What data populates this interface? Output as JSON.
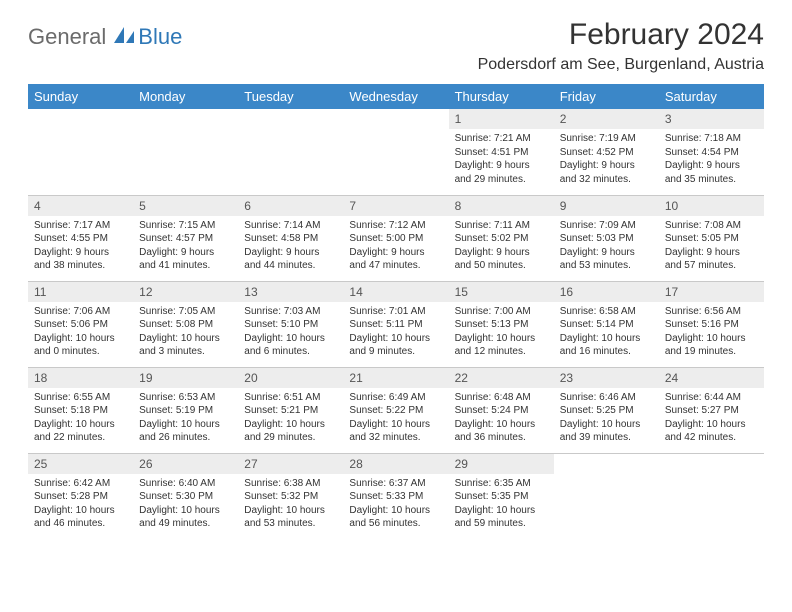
{
  "logo": {
    "part1": "General",
    "part2": "Blue"
  },
  "title": "February 2024",
  "location": "Podersdorf am See, Burgenland, Austria",
  "colors": {
    "header_bg": "#3b87c8",
    "header_fg": "#ffffff",
    "daybar_bg": "#ededed",
    "border": "#c9c9c9",
    "logo_gray": "#6b6b6b",
    "logo_blue": "#2f78b7"
  },
  "weekdays": [
    "Sunday",
    "Monday",
    "Tuesday",
    "Wednesday",
    "Thursday",
    "Friday",
    "Saturday"
  ],
  "startOffset": 4,
  "days": [
    {
      "n": "1",
      "sunrise": "Sunrise: 7:21 AM",
      "sunset": "Sunset: 4:51 PM",
      "day1": "Daylight: 9 hours",
      "day2": "and 29 minutes."
    },
    {
      "n": "2",
      "sunrise": "Sunrise: 7:19 AM",
      "sunset": "Sunset: 4:52 PM",
      "day1": "Daylight: 9 hours",
      "day2": "and 32 minutes."
    },
    {
      "n": "3",
      "sunrise": "Sunrise: 7:18 AM",
      "sunset": "Sunset: 4:54 PM",
      "day1": "Daylight: 9 hours",
      "day2": "and 35 minutes."
    },
    {
      "n": "4",
      "sunrise": "Sunrise: 7:17 AM",
      "sunset": "Sunset: 4:55 PM",
      "day1": "Daylight: 9 hours",
      "day2": "and 38 minutes."
    },
    {
      "n": "5",
      "sunrise": "Sunrise: 7:15 AM",
      "sunset": "Sunset: 4:57 PM",
      "day1": "Daylight: 9 hours",
      "day2": "and 41 minutes."
    },
    {
      "n": "6",
      "sunrise": "Sunrise: 7:14 AM",
      "sunset": "Sunset: 4:58 PM",
      "day1": "Daylight: 9 hours",
      "day2": "and 44 minutes."
    },
    {
      "n": "7",
      "sunrise": "Sunrise: 7:12 AM",
      "sunset": "Sunset: 5:00 PM",
      "day1": "Daylight: 9 hours",
      "day2": "and 47 minutes."
    },
    {
      "n": "8",
      "sunrise": "Sunrise: 7:11 AM",
      "sunset": "Sunset: 5:02 PM",
      "day1": "Daylight: 9 hours",
      "day2": "and 50 minutes."
    },
    {
      "n": "9",
      "sunrise": "Sunrise: 7:09 AM",
      "sunset": "Sunset: 5:03 PM",
      "day1": "Daylight: 9 hours",
      "day2": "and 53 minutes."
    },
    {
      "n": "10",
      "sunrise": "Sunrise: 7:08 AM",
      "sunset": "Sunset: 5:05 PM",
      "day1": "Daylight: 9 hours",
      "day2": "and 57 minutes."
    },
    {
      "n": "11",
      "sunrise": "Sunrise: 7:06 AM",
      "sunset": "Sunset: 5:06 PM",
      "day1": "Daylight: 10 hours",
      "day2": "and 0 minutes."
    },
    {
      "n": "12",
      "sunrise": "Sunrise: 7:05 AM",
      "sunset": "Sunset: 5:08 PM",
      "day1": "Daylight: 10 hours",
      "day2": "and 3 minutes."
    },
    {
      "n": "13",
      "sunrise": "Sunrise: 7:03 AM",
      "sunset": "Sunset: 5:10 PM",
      "day1": "Daylight: 10 hours",
      "day2": "and 6 minutes."
    },
    {
      "n": "14",
      "sunrise": "Sunrise: 7:01 AM",
      "sunset": "Sunset: 5:11 PM",
      "day1": "Daylight: 10 hours",
      "day2": "and 9 minutes."
    },
    {
      "n": "15",
      "sunrise": "Sunrise: 7:00 AM",
      "sunset": "Sunset: 5:13 PM",
      "day1": "Daylight: 10 hours",
      "day2": "and 12 minutes."
    },
    {
      "n": "16",
      "sunrise": "Sunrise: 6:58 AM",
      "sunset": "Sunset: 5:14 PM",
      "day1": "Daylight: 10 hours",
      "day2": "and 16 minutes."
    },
    {
      "n": "17",
      "sunrise": "Sunrise: 6:56 AM",
      "sunset": "Sunset: 5:16 PM",
      "day1": "Daylight: 10 hours",
      "day2": "and 19 minutes."
    },
    {
      "n": "18",
      "sunrise": "Sunrise: 6:55 AM",
      "sunset": "Sunset: 5:18 PM",
      "day1": "Daylight: 10 hours",
      "day2": "and 22 minutes."
    },
    {
      "n": "19",
      "sunrise": "Sunrise: 6:53 AM",
      "sunset": "Sunset: 5:19 PM",
      "day1": "Daylight: 10 hours",
      "day2": "and 26 minutes."
    },
    {
      "n": "20",
      "sunrise": "Sunrise: 6:51 AM",
      "sunset": "Sunset: 5:21 PM",
      "day1": "Daylight: 10 hours",
      "day2": "and 29 minutes."
    },
    {
      "n": "21",
      "sunrise": "Sunrise: 6:49 AM",
      "sunset": "Sunset: 5:22 PM",
      "day1": "Daylight: 10 hours",
      "day2": "and 32 minutes."
    },
    {
      "n": "22",
      "sunrise": "Sunrise: 6:48 AM",
      "sunset": "Sunset: 5:24 PM",
      "day1": "Daylight: 10 hours",
      "day2": "and 36 minutes."
    },
    {
      "n": "23",
      "sunrise": "Sunrise: 6:46 AM",
      "sunset": "Sunset: 5:25 PM",
      "day1": "Daylight: 10 hours",
      "day2": "and 39 minutes."
    },
    {
      "n": "24",
      "sunrise": "Sunrise: 6:44 AM",
      "sunset": "Sunset: 5:27 PM",
      "day1": "Daylight: 10 hours",
      "day2": "and 42 minutes."
    },
    {
      "n": "25",
      "sunrise": "Sunrise: 6:42 AM",
      "sunset": "Sunset: 5:28 PM",
      "day1": "Daylight: 10 hours",
      "day2": "and 46 minutes."
    },
    {
      "n": "26",
      "sunrise": "Sunrise: 6:40 AM",
      "sunset": "Sunset: 5:30 PM",
      "day1": "Daylight: 10 hours",
      "day2": "and 49 minutes."
    },
    {
      "n": "27",
      "sunrise": "Sunrise: 6:38 AM",
      "sunset": "Sunset: 5:32 PM",
      "day1": "Daylight: 10 hours",
      "day2": "and 53 minutes."
    },
    {
      "n": "28",
      "sunrise": "Sunrise: 6:37 AM",
      "sunset": "Sunset: 5:33 PM",
      "day1": "Daylight: 10 hours",
      "day2": "and 56 minutes."
    },
    {
      "n": "29",
      "sunrise": "Sunrise: 6:35 AM",
      "sunset": "Sunset: 5:35 PM",
      "day1": "Daylight: 10 hours",
      "day2": "and 59 minutes."
    }
  ]
}
